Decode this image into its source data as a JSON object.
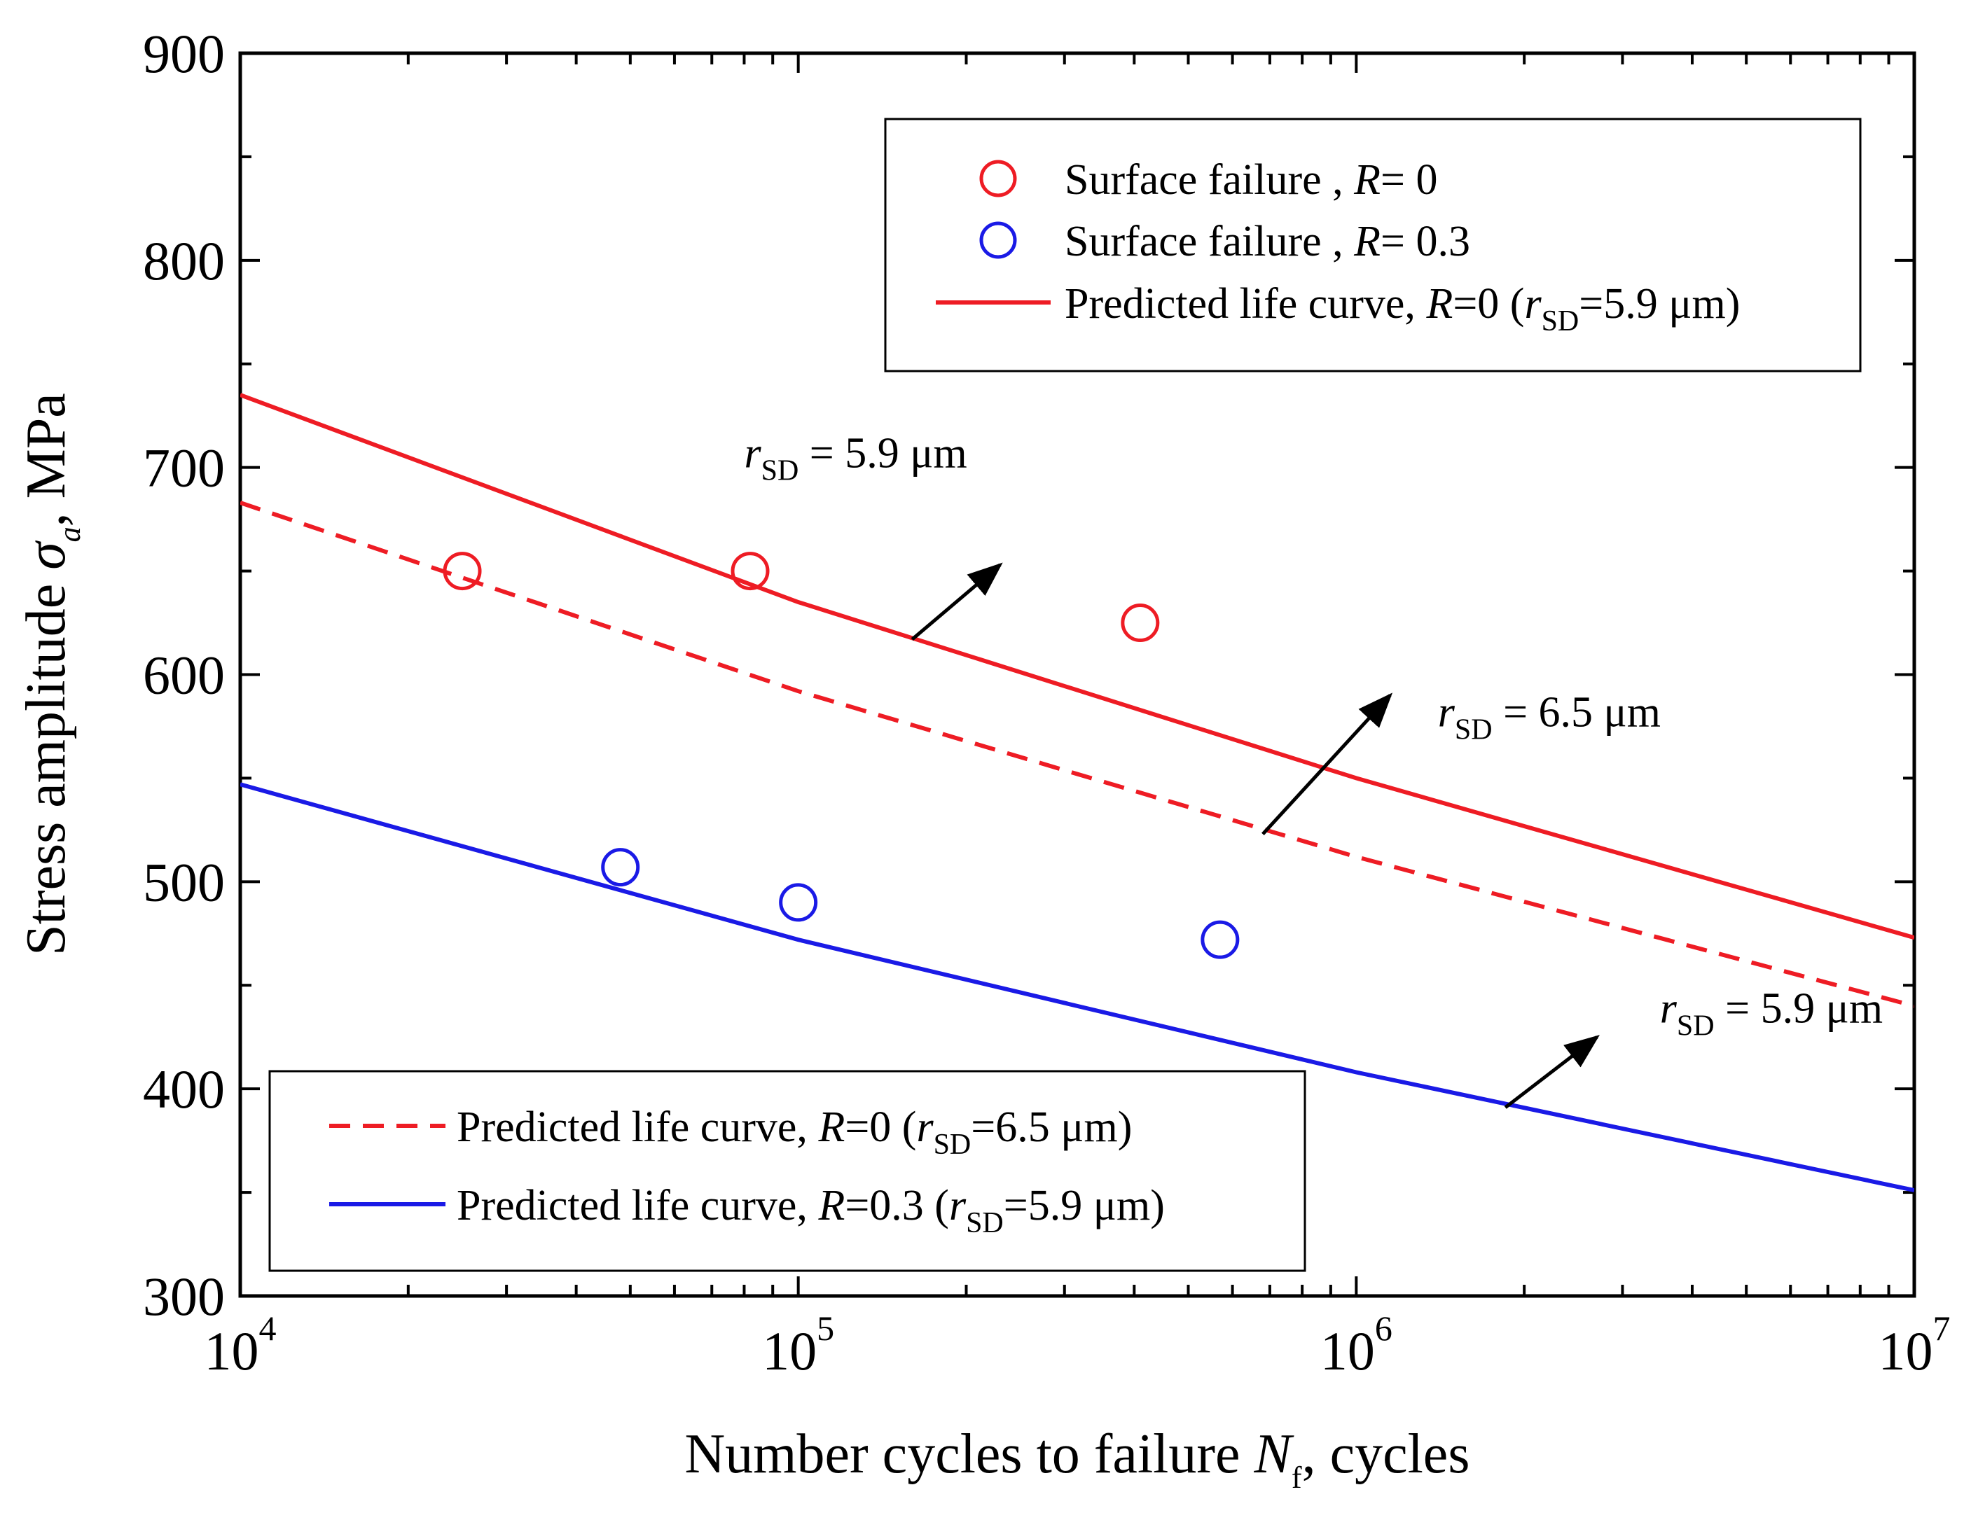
{
  "chart_data": {
    "type": "scatter",
    "xlabel": {
      "prefix": "Number cycles to failure ",
      "symbol": "N",
      "subscript": "f",
      "suffix": ", cycles"
    },
    "ylabel": {
      "prefix": "Stress amplitude ",
      "symbol": "σ",
      "subscript": "a",
      "suffix": ", MPa"
    },
    "xscale": "log",
    "xlim": [
      10000,
      10000000
    ],
    "ylim": [
      300,
      900
    ],
    "x_ticks": [
      {
        "value": 10000,
        "base": "10",
        "exp": "4"
      },
      {
        "value": 100000,
        "base": "10",
        "exp": "5"
      },
      {
        "value": 1000000,
        "base": "10",
        "exp": "6"
      },
      {
        "value": 10000000,
        "base": "10",
        "exp": "7"
      }
    ],
    "y_ticks": [
      "300",
      "400",
      "500",
      "600",
      "700",
      "800",
      "900"
    ],
    "grid": false,
    "colors": {
      "red": "#ee1c24",
      "blue": "#1a1ae6"
    },
    "series": [
      {
        "name": "Surface failure , R= 0",
        "kind": "scatter",
        "color": "#ee1c24",
        "points": [
          {
            "x": 25000,
            "y": 650
          },
          {
            "x": 82000,
            "y": 650
          },
          {
            "x": 410000,
            "y": 625
          }
        ]
      },
      {
        "name": "Surface failure , R= 0.3",
        "kind": "scatter",
        "color": "#1a1ae6",
        "points": [
          {
            "x": 48000,
            "y": 507
          },
          {
            "x": 100000,
            "y": 490
          },
          {
            "x": 570000,
            "y": 472
          }
        ]
      },
      {
        "name": "Predicted life curve, R=0 (rSD=5.9 μm)",
        "kind": "line",
        "dash": "solid",
        "color": "#ee1c24",
        "points": [
          {
            "x": 10000,
            "y": 735
          },
          {
            "x": 100000,
            "y": 635
          },
          {
            "x": 1000000,
            "y": 550
          },
          {
            "x": 10000000,
            "y": 473
          }
        ]
      },
      {
        "name": "Predicted life curve, R=0 (rSD=6.5 μm)",
        "kind": "line",
        "dash": "dashed",
        "color": "#ee1c24",
        "points": [
          {
            "x": 10000,
            "y": 683
          },
          {
            "x": 100000,
            "y": 592
          },
          {
            "x": 1000000,
            "y": 512
          },
          {
            "x": 10000000,
            "y": 440
          }
        ]
      },
      {
        "name": "Predicted life curve, R=0.3 (rSD=5.9 μm)",
        "kind": "line",
        "dash": "solid",
        "color": "#1a1ae6",
        "points": [
          {
            "x": 10000,
            "y": 547
          },
          {
            "x": 100000,
            "y": 472
          },
          {
            "x": 1000000,
            "y": 408
          },
          {
            "x": 10000000,
            "y": 351
          }
        ]
      }
    ],
    "legends": {
      "top_right": [
        {
          "marker": "circle",
          "color": "#ee1c24",
          "text": "Surface failure , ",
          "italic": "R",
          "rest": "= 0"
        },
        {
          "marker": "circle",
          "color": "#1a1ae6",
          "text": "Surface failure , ",
          "italic": "R",
          "rest": "= 0.3"
        },
        {
          "marker": "line",
          "dash": "solid",
          "color": "#ee1c24",
          "text": "Predicted life curve, ",
          "italic": "R",
          "rest": "=0 (",
          "var": "r",
          "sub": "SD",
          "tail": "=5.9 μm)"
        }
      ],
      "bottom_left": [
        {
          "marker": "line",
          "dash": "dashed",
          "color": "#ee1c24",
          "text": "Predicted life curve, ",
          "italic": "R",
          "rest": "=0 (",
          "var": "r",
          "sub": "SD",
          "tail": "=6.5 μm)"
        },
        {
          "marker": "line",
          "dash": "solid",
          "color": "#1a1ae6",
          "text": "Predicted life curve, ",
          "italic": "R",
          "rest": "=0.3 (",
          "var": "r",
          "sub": "SD",
          "tail": "=5.9 μm)"
        }
      ]
    },
    "annotations": [
      {
        "var": "r",
        "sub": "SD",
        "value": " = 5.9 μm",
        "text_x": 80000,
        "text_y": 700,
        "arrow_from": {
          "x": 160000,
          "y": 617
        },
        "arrow_to": {
          "x": 230000,
          "y": 653
        }
      },
      {
        "var": "r",
        "sub": "SD",
        "value": " = 6.5 μm",
        "text_x": 1400000,
        "text_y": 575,
        "arrow_from": {
          "x": 680000,
          "y": 523
        },
        "arrow_to": {
          "x": 1150000,
          "y": 590
        }
      },
      {
        "var": "r",
        "sub": "SD",
        "value": " = 5.9 μm",
        "text_x": 3500000,
        "text_y": 432,
        "arrow_from": {
          "x": 1850000,
          "y": 391
        },
        "arrow_to": {
          "x": 2700000,
          "y": 425
        }
      }
    ]
  }
}
